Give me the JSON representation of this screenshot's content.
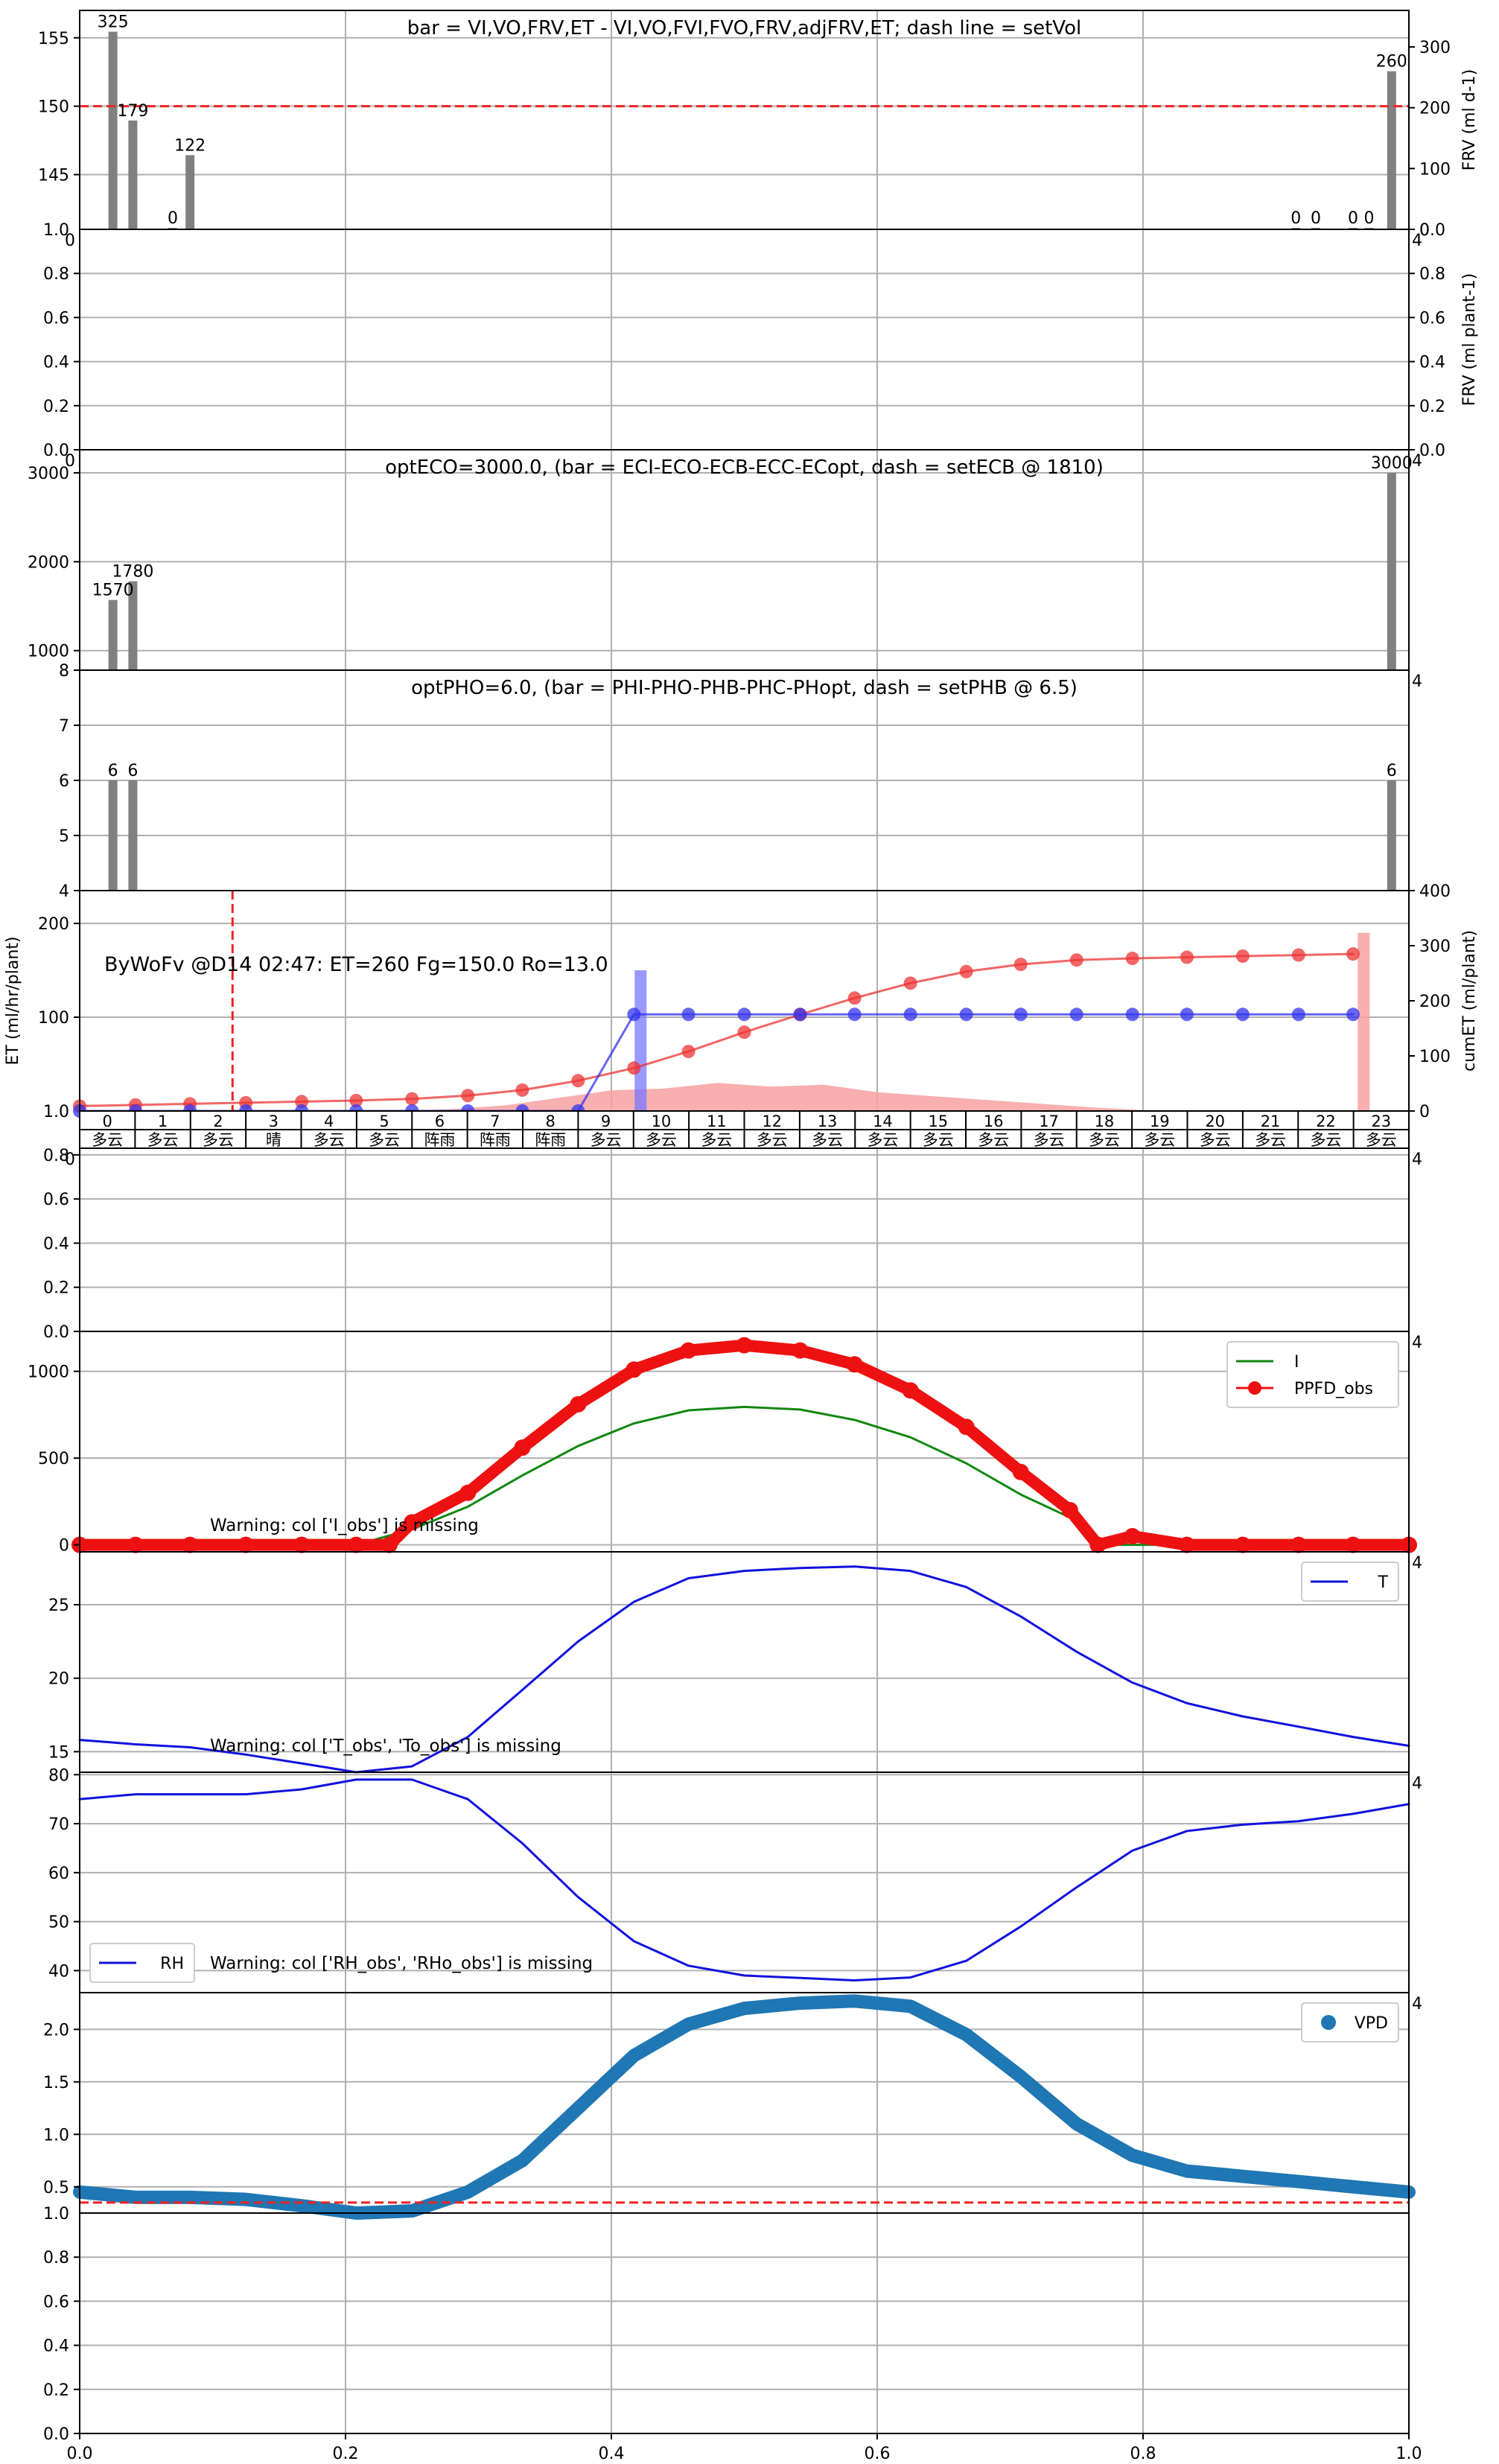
{
  "figure": {
    "x_ticks": [
      0,
      0.2,
      0.4,
      0.6,
      0.8,
      1.0
    ],
    "x_tick_labels": [
      "0.0",
      "0.2",
      "0.4",
      "0.6",
      "0.8",
      "1.0"
    ]
  },
  "hour_table": {
    "hours": [
      "0",
      "1",
      "2",
      "3",
      "4",
      "5",
      "6",
      "7",
      "8",
      "9",
      "10",
      "11",
      "12",
      "13",
      "14",
      "15",
      "16",
      "17",
      "18",
      "19",
      "20",
      "21",
      "22",
      "23"
    ],
    "weather": [
      "多云",
      "多云",
      "多云",
      "晴",
      "多云",
      "多云",
      "阵雨",
      "阵雨",
      "阵雨",
      "多云",
      "多云",
      "多云",
      "多云",
      "多云",
      "多云",
      "多云",
      "多云",
      "多云",
      "多云",
      "多云",
      "多云",
      "多云",
      "多云",
      "多云"
    ]
  },
  "chart_data": [
    {
      "id": "p1",
      "type": "bar",
      "title": "bar = VI,VO,FRV,ET - VI,VO,FVI,FVO,FRV,adjFRV,ET; dash line = setVol",
      "ylim": [
        141,
        157
      ],
      "yticks": [
        145,
        150,
        155
      ],
      "ytick_labels": [
        "145",
        "150",
        "155"
      ],
      "y2label": "FRV (ml d-1)",
      "y2lim": [
        0,
        360
      ],
      "y2ticks": [
        0,
        100,
        200,
        300
      ],
      "y2tick_labels": [
        "0",
        "100",
        "200",
        "300"
      ],
      "bottom_label": "1.0",
      "right_bottom_label": "0.0",
      "dash_line": {
        "value": 150,
        "color": "#ee2222"
      },
      "bars": [
        {
          "x": 0.025,
          "value": 325,
          "label": "325"
        },
        {
          "x": 0.04,
          "value": 179,
          "label": "179"
        },
        {
          "x": 0.07,
          "value": 0,
          "label": "0"
        },
        {
          "x": 0.083,
          "value": 122,
          "label": "122"
        },
        {
          "x": 0.915,
          "value": 0,
          "label": "0"
        },
        {
          "x": 0.93,
          "value": 0,
          "label": "0"
        },
        {
          "x": 0.958,
          "value": 0,
          "label": "0"
        },
        {
          "x": 0.97,
          "value": 0,
          "label": "0"
        },
        {
          "x": 0.987,
          "value": 260,
          "label": "260"
        }
      ],
      "bar_color": "#808080"
    },
    {
      "id": "p2",
      "type": "bar",
      "ylim": [
        0,
        1.0
      ],
      "yticks": [
        0,
        0.2,
        0.4,
        0.6,
        0.8
      ],
      "ytick_labels": [
        "0.0",
        "0.2",
        "0.4",
        "0.6",
        "0.8"
      ],
      "y2label": "FRV (ml plant-1)",
      "y2ticks": [
        0,
        0.2,
        0.4,
        0.6,
        0.8
      ],
      "y2tick_labels": [
        "0.0",
        "0.2",
        "0.4",
        "0.6",
        "0.8"
      ],
      "corner_left": "0",
      "corner_right": "4"
    },
    {
      "id": "p3",
      "type": "bar",
      "title": "optECO=3000.0, (bar = ECI-ECO-ECB-ECC-ECopt, dash = setECB @ 1810)",
      "ylim": [
        780,
        3260
      ],
      "yticks": [
        1000,
        2000,
        3000
      ],
      "ytick_labels": [
        "1000",
        "2000",
        "3000"
      ],
      "corner_left": "0",
      "corner_right": "4",
      "bars": [
        {
          "x": 0.025,
          "value": 1570,
          "label": "1570"
        },
        {
          "x": 0.04,
          "value": 1780,
          "label": "1780"
        },
        {
          "x": 0.987,
          "value": 3000,
          "label": "3000"
        }
      ],
      "bar_color": "#808080"
    },
    {
      "id": "p4",
      "type": "bar",
      "title": "optPHO=6.0, (bar = PHI-PHO-PHB-PHC-PHopt, dash = setPHB @ 6.5)",
      "ylim": [
        4,
        8
      ],
      "yticks": [
        4,
        5,
        6,
        7,
        8
      ],
      "ytick_labels": [
        "4",
        "5",
        "6",
        "7",
        "8"
      ],
      "corner_right": "4",
      "bars": [
        {
          "x": 0.025,
          "value": 6,
          "label": "6"
        },
        {
          "x": 0.04,
          "value": 6,
          "label": "6"
        },
        {
          "x": 0.987,
          "value": 6,
          "label": "6"
        }
      ],
      "bar_color": "#808080"
    },
    {
      "id": "p5",
      "type": "line",
      "annotation": "ByWoFv @D14 02:47: ET=260 Fg=150.0 Ro=13.0",
      "ylabel": "ET (ml/hr/plant)",
      "ylim": [
        0,
        235
      ],
      "yticks": [
        100,
        200
      ],
      "ytick_labels": [
        "100",
        "200"
      ],
      "bottom_label": "1.0",
      "y2label": "cumET (ml/plant)",
      "y2lim": [
        0,
        400
      ],
      "y2ticks": [
        0,
        100,
        200,
        300,
        400
      ],
      "y2tick_labels": [
        "0",
        "100",
        "200",
        "300",
        "400"
      ],
      "dash_vline": {
        "x": 0.115,
        "color": "#ee2222"
      },
      "pink_area": {
        "x": [
          0,
          0.04,
          0.08,
          0.12,
          0.16,
          0.2,
          0.24,
          0.28,
          0.32,
          0.36,
          0.4,
          0.44,
          0.48,
          0.52,
          0.56,
          0.6,
          0.64,
          0.68,
          0.72,
          0.76,
          0.8,
          0.84,
          0.88,
          0.92,
          0.96,
          0.975
        ],
        "y": [
          0,
          0,
          0,
          0,
          0,
          0,
          0,
          2,
          6,
          14,
          22,
          24,
          30,
          26,
          28,
          20,
          16,
          12,
          8,
          4,
          1,
          0,
          0,
          0,
          0,
          0
        ]
      },
      "pink_bar": {
        "x": 0.966,
        "value": 190
      },
      "blue_bar": {
        "x": 0.422,
        "value": 150
      },
      "series": [
        {
          "color": "#ee3333",
          "x": [
            0,
            0.042,
            0.083,
            0.125,
            0.167,
            0.208,
            0.25,
            0.292,
            0.333,
            0.375,
            0.417,
            0.458,
            0.5,
            0.542,
            0.583,
            0.625,
            0.667,
            0.708,
            0.75,
            0.792,
            0.833,
            0.875,
            0.917,
            0.958
          ],
          "y2": [
            9,
            11,
            13,
            15,
            17,
            19,
            22,
            28,
            38,
            55,
            78,
            108,
            143,
            175,
            205,
            232,
            253,
            266,
            274,
            277,
            279,
            281,
            283,
            285
          ]
        },
        {
          "color": "#3333ee",
          "x": [
            0,
            0.042,
            0.083,
            0.125,
            0.167,
            0.208,
            0.25,
            0.292,
            0.333,
            0.375,
            0.417,
            0.458,
            0.5,
            0.542,
            0.583,
            0.625,
            0.667,
            0.708,
            0.75,
            0.792,
            0.833,
            0.875,
            0.917,
            0.958
          ],
          "y": [
            0,
            0,
            0,
            0,
            0,
            0,
            0,
            0,
            0,
            0,
            103,
            103,
            103,
            103,
            103,
            103,
            103,
            103,
            103,
            103,
            103,
            103,
            103,
            103
          ]
        }
      ]
    },
    {
      "id": "p6",
      "type": "line",
      "ylim": [
        0,
        0.83
      ],
      "yticks": [
        0,
        0.2,
        0.4,
        0.6,
        0.8
      ],
      "ytick_labels": [
        "0.0",
        "0.2",
        "0.4",
        "0.6",
        "0.8"
      ],
      "corner_left": "0",
      "corner_right": "4"
    },
    {
      "id": "p7",
      "type": "line",
      "annotation": "Warning: col ['I_obs'] is missing",
      "ylim": [
        -40,
        1230
      ],
      "yticks": [
        0,
        500,
        1000
      ],
      "ytick_labels": [
        "0",
        "500",
        "1000"
      ],
      "corner_right": "4",
      "legend": {
        "placement": "top-right",
        "entries": [
          "I",
          "PPFD_obs"
        ]
      },
      "series": [
        {
          "name": "I",
          "color": "#118811",
          "x": [
            0,
            0.042,
            0.083,
            0.125,
            0.167,
            0.208,
            0.25,
            0.292,
            0.333,
            0.375,
            0.417,
            0.458,
            0.5,
            0.542,
            0.583,
            0.625,
            0.667,
            0.708,
            0.75,
            0.766,
            0.792,
            0.833,
            0.875,
            0.917,
            0.958,
            1.0
          ],
          "y": [
            0,
            0,
            0,
            0,
            0,
            0,
            90,
            220,
            400,
            570,
            700,
            775,
            795,
            780,
            720,
            620,
            470,
            290,
            140,
            0,
            0,
            0,
            0,
            0,
            0,
            0
          ]
        },
        {
          "name": "PPFD_obs",
          "color": "#ee1111",
          "x": [
            0,
            0.042,
            0.083,
            0.125,
            0.167,
            0.208,
            0.233,
            0.25,
            0.292,
            0.333,
            0.375,
            0.417,
            0.458,
            0.5,
            0.542,
            0.583,
            0.625,
            0.667,
            0.708,
            0.745,
            0.766,
            0.792,
            0.833,
            0.875,
            0.917,
            0.958,
            1.0
          ],
          "y": [
            0,
            0,
            0,
            0,
            0,
            0,
            0,
            130,
            300,
            560,
            810,
            1010,
            1120,
            1150,
            1120,
            1040,
            890,
            680,
            420,
            200,
            0,
            50,
            0,
            0,
            0,
            0,
            0
          ]
        }
      ]
    },
    {
      "id": "p8",
      "type": "line",
      "annotation": "Warning: col ['T_obs', 'To_obs'] is missing",
      "ylim": [
        13.6,
        28.6
      ],
      "yticks": [
        15,
        20,
        25
      ],
      "ytick_labels": [
        "15",
        "20",
        "25"
      ],
      "corner_right": "4",
      "legend": {
        "placement": "top-right",
        "entries": [
          "T"
        ]
      },
      "series": [
        {
          "name": "T",
          "color": "#1111dd",
          "x": [
            0,
            0.042,
            0.083,
            0.125,
            0.167,
            0.208,
            0.25,
            0.292,
            0.333,
            0.375,
            0.417,
            0.458,
            0.5,
            0.542,
            0.583,
            0.625,
            0.667,
            0.708,
            0.75,
            0.792,
            0.833,
            0.875,
            0.917,
            0.958,
            1.0
          ],
          "y": [
            15.8,
            15.5,
            15.3,
            14.8,
            14.2,
            13.6,
            14.0,
            16.0,
            19.2,
            22.5,
            25.2,
            26.8,
            27.3,
            27.5,
            27.6,
            27.3,
            26.2,
            24.2,
            21.8,
            19.7,
            18.3,
            17.4,
            16.7,
            16.0,
            15.4
          ]
        }
      ]
    },
    {
      "id": "p9",
      "type": "line",
      "annotation": "Warning: col ['RH_obs', 'RHo_obs'] is missing",
      "ylim": [
        35.5,
        80.5
      ],
      "yticks": [
        40,
        50,
        60,
        70,
        80
      ],
      "ytick_labels": [
        "40",
        "50",
        "60",
        "70",
        "80"
      ],
      "corner_right": "4",
      "legend": {
        "placement": "bottom-left",
        "entries": [
          "RH"
        ]
      },
      "series": [
        {
          "name": "RH",
          "color": "#1111dd",
          "x": [
            0,
            0.042,
            0.083,
            0.125,
            0.167,
            0.208,
            0.25,
            0.292,
            0.333,
            0.375,
            0.417,
            0.458,
            0.5,
            0.542,
            0.583,
            0.625,
            0.667,
            0.708,
            0.75,
            0.792,
            0.833,
            0.875,
            0.917,
            0.958,
            1.0
          ],
          "y": [
            75,
            76,
            76,
            76,
            77,
            79,
            79,
            75,
            66,
            55,
            46,
            41,
            39,
            38.5,
            38,
            38.6,
            42,
            49,
            57,
            64.5,
            68.5,
            69.8,
            70.5,
            72,
            74
          ]
        }
      ]
    },
    {
      "id": "p10",
      "type": "line",
      "ylim": [
        0.25,
        2.35
      ],
      "yticks": [
        0.5,
        1.0,
        1.5,
        2.0
      ],
      "ytick_labels": [
        "0.5",
        "1.0",
        "1.5",
        "2.0"
      ],
      "bottom_label": "1.0",
      "corner_right": "4",
      "dash_line": {
        "value": 0.35,
        "color": "#ee2222"
      },
      "legend": {
        "placement": "top-right",
        "entries": [
          "VPD"
        ]
      },
      "series": [
        {
          "name": "VPD",
          "color": "#1f77b4",
          "x": [
            0,
            0.042,
            0.083,
            0.125,
            0.167,
            0.208,
            0.25,
            0.292,
            0.333,
            0.375,
            0.417,
            0.458,
            0.5,
            0.542,
            0.583,
            0.625,
            0.667,
            0.708,
            0.75,
            0.792,
            0.833,
            0.875,
            0.917,
            0.958,
            1.0
          ],
          "y": [
            0.45,
            0.4,
            0.4,
            0.38,
            0.32,
            0.25,
            0.27,
            0.45,
            0.75,
            1.25,
            1.75,
            2.05,
            2.2,
            2.25,
            2.27,
            2.22,
            1.95,
            1.55,
            1.1,
            0.8,
            0.65,
            0.6,
            0.55,
            0.5,
            0.45
          ]
        }
      ]
    },
    {
      "id": "p11",
      "type": "line",
      "ylim": [
        0,
        1.0
      ],
      "yticks": [
        0,
        0.2,
        0.4,
        0.6,
        0.8
      ],
      "ytick_labels": [
        "0.0",
        "0.2",
        "0.4",
        "0.6",
        "0.8"
      ]
    }
  ]
}
